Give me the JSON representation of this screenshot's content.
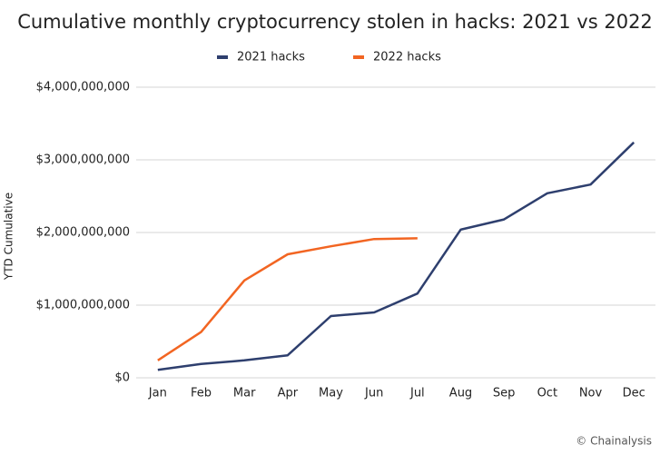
{
  "chart_data": {
    "type": "line",
    "title": "Cumulative monthly cryptocurrency stolen in hacks: 2021 vs 2022",
    "y_label": "YTD Cumulative",
    "source": "© Chainalysis",
    "categories": [
      "Jan",
      "Feb",
      "Mar",
      "Apr",
      "May",
      "Jun",
      "Jul",
      "Aug",
      "Sep",
      "Oct",
      "Nov",
      "Dec"
    ],
    "series": [
      {
        "name": "2021 hacks",
        "color": "#2e3f6e",
        "values": [
          110000000,
          190000000,
          240000000,
          310000000,
          850000000,
          900000000,
          1160000000,
          2040000000,
          2180000000,
          2540000000,
          2660000000,
          3240000000
        ]
      },
      {
        "name": "2022 hacks",
        "color": "#f26522",
        "values": [
          240000000,
          630000000,
          1340000000,
          1700000000,
          1810000000,
          1910000000,
          1920000000,
          null,
          null,
          null,
          null,
          null
        ]
      }
    ],
    "ylim": [
      0,
      4000000000
    ],
    "yticks": [
      {
        "value": 0,
        "label": "$0"
      },
      {
        "value": 1000000000,
        "label": "$1,000,000,000"
      },
      {
        "value": 2000000000,
        "label": "$2,000,000,000"
      },
      {
        "value": 3000000000,
        "label": "$3,000,000,000"
      },
      {
        "value": 4000000000,
        "label": "$4,000,000,000"
      }
    ],
    "grid": true,
    "legend": "top"
  }
}
